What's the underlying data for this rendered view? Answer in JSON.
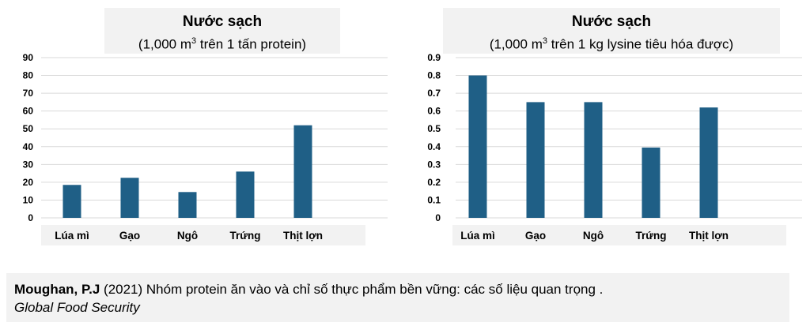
{
  "chart_data": [
    {
      "type": "bar",
      "title": "Nước sạch",
      "subtitle_prefix": "(1,000 m",
      "subtitle_sup": "3",
      "subtitle_suffix": " trên 1 tấn protein)",
      "categories": [
        "Lúa mì",
        "Gạo",
        "Ngô",
        "Trứng",
        "Thịt lợn"
      ],
      "values": [
        18.5,
        22.5,
        14.5,
        26,
        52
      ],
      "ylim": [
        0,
        90
      ],
      "yticks": [
        0,
        10,
        20,
        30,
        40,
        50,
        60,
        70,
        80,
        90
      ],
      "ytick_labels": [
        "0",
        "10",
        "20",
        "30",
        "40",
        "50",
        "60",
        "70",
        "80",
        "90"
      ],
      "grid": true,
      "bar_color": "#1f5f86"
    },
    {
      "type": "bar",
      "title": "Nước sạch",
      "subtitle_prefix": "(1,000 m",
      "subtitle_sup": "3",
      "subtitle_suffix": " trên 1 kg lysine tiêu hóa được)",
      "categories": [
        "Lúa mì",
        "Gạo",
        "Ngô",
        "Trứng",
        "Thịt lợn"
      ],
      "values": [
        0.8,
        0.65,
        0.65,
        0.395,
        0.62
      ],
      "ylim": [
        0,
        0.9
      ],
      "yticks": [
        0,
        0.1,
        0.2,
        0.3,
        0.4,
        0.5,
        0.6,
        0.7,
        0.8,
        0.9
      ],
      "ytick_labels": [
        "0",
        "0.1",
        "0.2",
        "0.3",
        "0.4",
        "0.5",
        "0.6",
        "0.7",
        "0.8",
        "0.9"
      ],
      "grid": true,
      "bar_color": "#1f5f86"
    }
  ],
  "citation": {
    "author": "Moughan, P.J",
    "text": " (2021) Nhóm protein ăn vào và chỉ số thực phẩm bền vững: các số liệu quan trọng .",
    "journal": "Global Food Security"
  }
}
